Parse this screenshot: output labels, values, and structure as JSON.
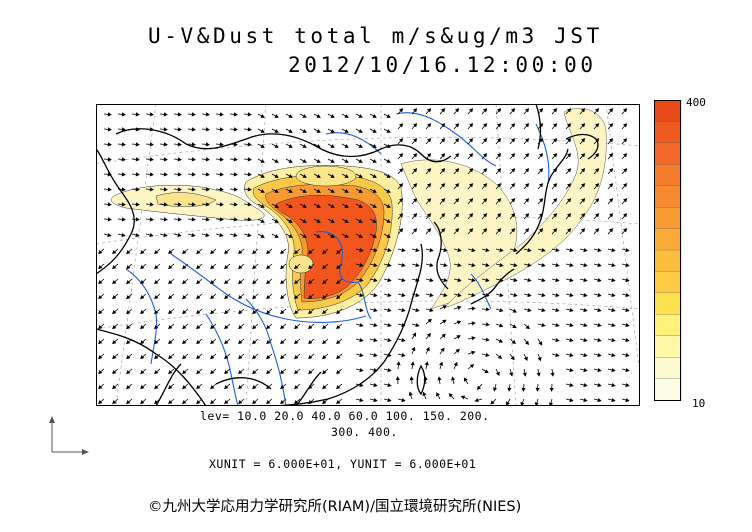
{
  "title": {
    "line1": "U-V&Dust total m/s&ug/m3 JST",
    "line2": "2012/10/16.12:00:00"
  },
  "colorbar": {
    "max_label": "400",
    "min_label": "10",
    "colors": [
      "#e64a19",
      "#ee5a1f",
      "#f2682a",
      "#f47a2c",
      "#f68a30",
      "#f89a32",
      "#f9ab38",
      "#fbbd3d",
      "#fccc45",
      "#fde14f",
      "#fff07a",
      "#fff8a8",
      "#fefbd0",
      "#fefde6"
    ]
  },
  "levels": {
    "line1": "lev= 10.0 20.0 40.0 60.0 100. 150. 200.",
    "line2": "300. 400."
  },
  "units_line": "XUNIT = 6.000E+01, YUNIT = 6.000E+01",
  "credit": "©九州大学応用力学研究所(RIAM)/国立環境研究所(NIES)",
  "map": {
    "colors": {
      "coast": "#000000",
      "rivers": "#1e5fd9",
      "grid": "#9a9a9a",
      "dust_light": "#fdf6c4",
      "dust_core": "#f2561d",
      "dust_mid": "#fbb43a"
    }
  }
}
